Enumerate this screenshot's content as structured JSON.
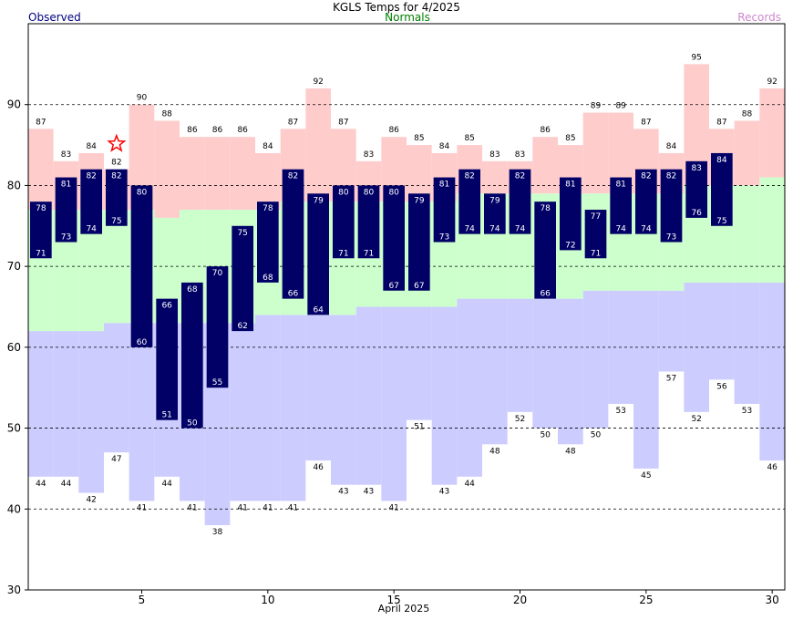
{
  "chart_data": {
    "type": "bar",
    "title": "KGLS Temps for 4/2025",
    "xlabel": "April 2025",
    "ylabel": "",
    "ylim": [
      30,
      100
    ],
    "xlim": [
      0.5,
      30.5
    ],
    "yticks": [
      30,
      40,
      50,
      60,
      70,
      80,
      90
    ],
    "xticks": [
      5,
      10,
      15,
      20,
      25,
      30
    ],
    "grid": true,
    "legend": {
      "observed": "Observed",
      "normals": "Normals",
      "records": "Records"
    },
    "colors": {
      "observed": "#000066",
      "normals": "#ccffcc",
      "records_high": "#ffcccc",
      "records_low": "#ccccff",
      "observed_label": "#000080",
      "normals_label": "#008000",
      "records_label": "#cc88cc",
      "star": "#ff0000"
    },
    "days": [
      1,
      2,
      3,
      4,
      5,
      6,
      7,
      8,
      9,
      10,
      11,
      12,
      13,
      14,
      15,
      16,
      17,
      18,
      19,
      20,
      21,
      22,
      23,
      24,
      25,
      26,
      27,
      28,
      29,
      30
    ],
    "observed_high": [
      78,
      81,
      82,
      82,
      80,
      66,
      68,
      70,
      75,
      78,
      82,
      79,
      80,
      80,
      80,
      79,
      81,
      82,
      79,
      82,
      78,
      81,
      77,
      81,
      82,
      82,
      83,
      84,
      null,
      null
    ],
    "observed_low": [
      71,
      73,
      74,
      75,
      60,
      51,
      50,
      55,
      62,
      68,
      66,
      64,
      71,
      71,
      67,
      67,
      73,
      74,
      74,
      74,
      66,
      72,
      71,
      74,
      74,
      73,
      76,
      75,
      null,
      null
    ],
    "normal_high": [
      77,
      77,
      77,
      77,
      77,
      76,
      77,
      77,
      77,
      77,
      78,
      78,
      78,
      78,
      78,
      78,
      78,
      79,
      79,
      79,
      79,
      79,
      79,
      79,
      79,
      79,
      80,
      80,
      80,
      81
    ],
    "normal_low": [
      62,
      62,
      62,
      63,
      63,
      63,
      63,
      63,
      63,
      64,
      64,
      64,
      64,
      65,
      65,
      65,
      65,
      66,
      66,
      66,
      66,
      66,
      67,
      67,
      67,
      67,
      68,
      68,
      68,
      68
    ],
    "record_high": [
      87,
      83,
      84,
      82,
      90,
      88,
      86,
      86,
      86,
      84,
      87,
      92,
      87,
      83,
      86,
      85,
      84,
      85,
      83,
      83,
      86,
      85,
      89,
      89,
      87,
      84,
      95,
      87,
      88,
      92
    ],
    "record_low": [
      44,
      44,
      42,
      47,
      41,
      44,
      41,
      38,
      41,
      41,
      41,
      46,
      43,
      43,
      41,
      51,
      43,
      44,
      48,
      52,
      50,
      48,
      50,
      53,
      45,
      57,
      52,
      56,
      53,
      46
    ],
    "record_high_star_day": 4
  }
}
